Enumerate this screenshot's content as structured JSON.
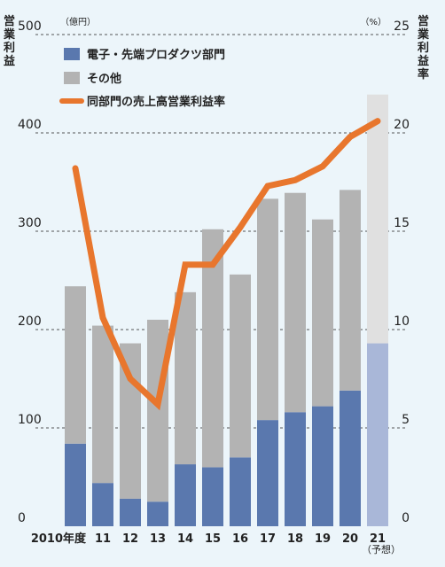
{
  "chart_data": {
    "type": "bar+line",
    "categories": [
      "2010年度",
      "11",
      "12",
      "13",
      "14",
      "15",
      "16",
      "17",
      "18",
      "19",
      "20",
      "21"
    ],
    "forecast_note": "（予想）",
    "left_axis": {
      "title": "営業利益",
      "unit": "（億円）",
      "ticks": [
        "0",
        "100",
        "200",
        "300",
        "400",
        "500"
      ],
      "range": [
        0,
        500
      ]
    },
    "right_axis": {
      "title": "営業利益率",
      "unit": "（%）",
      "ticks": [
        "0",
        "5",
        "10",
        "15",
        "20",
        "25"
      ],
      "range": [
        0,
        25
      ]
    },
    "series": [
      {
        "name": "電子・先端プロダクツ部門",
        "kind": "bar-bottom",
        "color": "#5a78ae",
        "forecast_color": "#a9b7d8",
        "values": [
          84,
          44,
          28,
          25,
          63,
          60,
          70,
          108,
          116,
          122,
          138,
          186
        ]
      },
      {
        "name": "その他",
        "kind": "bar-top",
        "color": "#b3b3b3",
        "forecast_color": "#e0e0e0",
        "values": [
          160,
          160,
          158,
          185,
          175,
          242,
          186,
          225,
          223,
          190,
          204,
          253
        ]
      },
      {
        "name": "同部門の売上高営業利益率",
        "kind": "line",
        "color": "#e8762d",
        "values": [
          18.2,
          10.6,
          7.5,
          6.2,
          13.3,
          13.3,
          15.2,
          17.3,
          17.6,
          18.3,
          19.8,
          20.6
        ]
      }
    ],
    "grid": "dashed horizontal",
    "legend_position": "top-left"
  }
}
